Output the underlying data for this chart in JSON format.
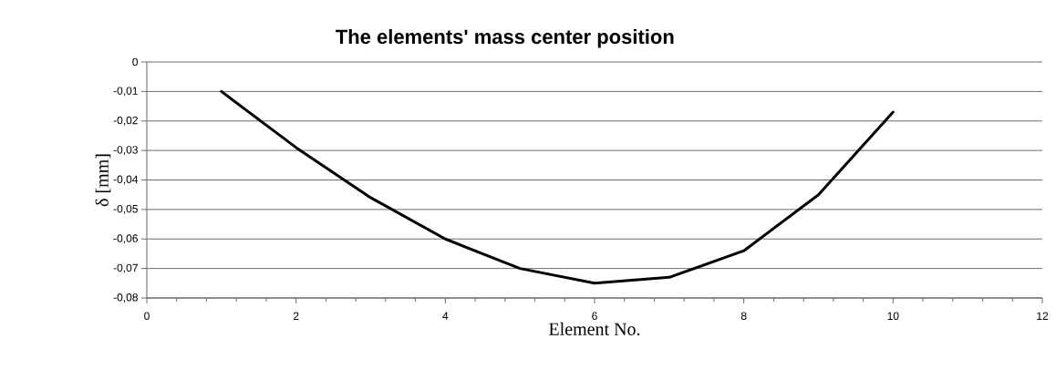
{
  "chart_data": {
    "type": "line",
    "title": "The elements' mass center position",
    "xlabel": "Element No.",
    "ylabel": "δ [mm]",
    "x": [
      1,
      2,
      3,
      4,
      5,
      6,
      7,
      8,
      9,
      10
    ],
    "series": [
      {
        "color": "#000000",
        "values": [
          -0.01,
          -0.029,
          -0.046,
          -0.06,
          -0.07,
          -0.075,
          -0.073,
          -0.064,
          -0.045,
          -0.017
        ]
      }
    ],
    "xlim": [
      0,
      12
    ],
    "xticks": [
      0,
      2,
      4,
      6,
      8,
      10,
      12
    ],
    "ylim": [
      -0.08,
      0
    ],
    "yticks": [
      {
        "value": -0.08,
        "label": "-0,08"
      },
      {
        "value": -0.07,
        "label": "-0,07"
      },
      {
        "value": -0.06,
        "label": "-0,06"
      },
      {
        "value": -0.05,
        "label": "-0,05"
      },
      {
        "value": -0.04,
        "label": "-0,04"
      },
      {
        "value": -0.03,
        "label": "-0,03"
      },
      {
        "value": -0.02,
        "label": "-0,02"
      },
      {
        "value": -0.01,
        "label": "-0,01"
      },
      {
        "value": 0,
        "label": "0"
      }
    ],
    "grid": "y",
    "marker": "none",
    "line_style": "solid"
  }
}
